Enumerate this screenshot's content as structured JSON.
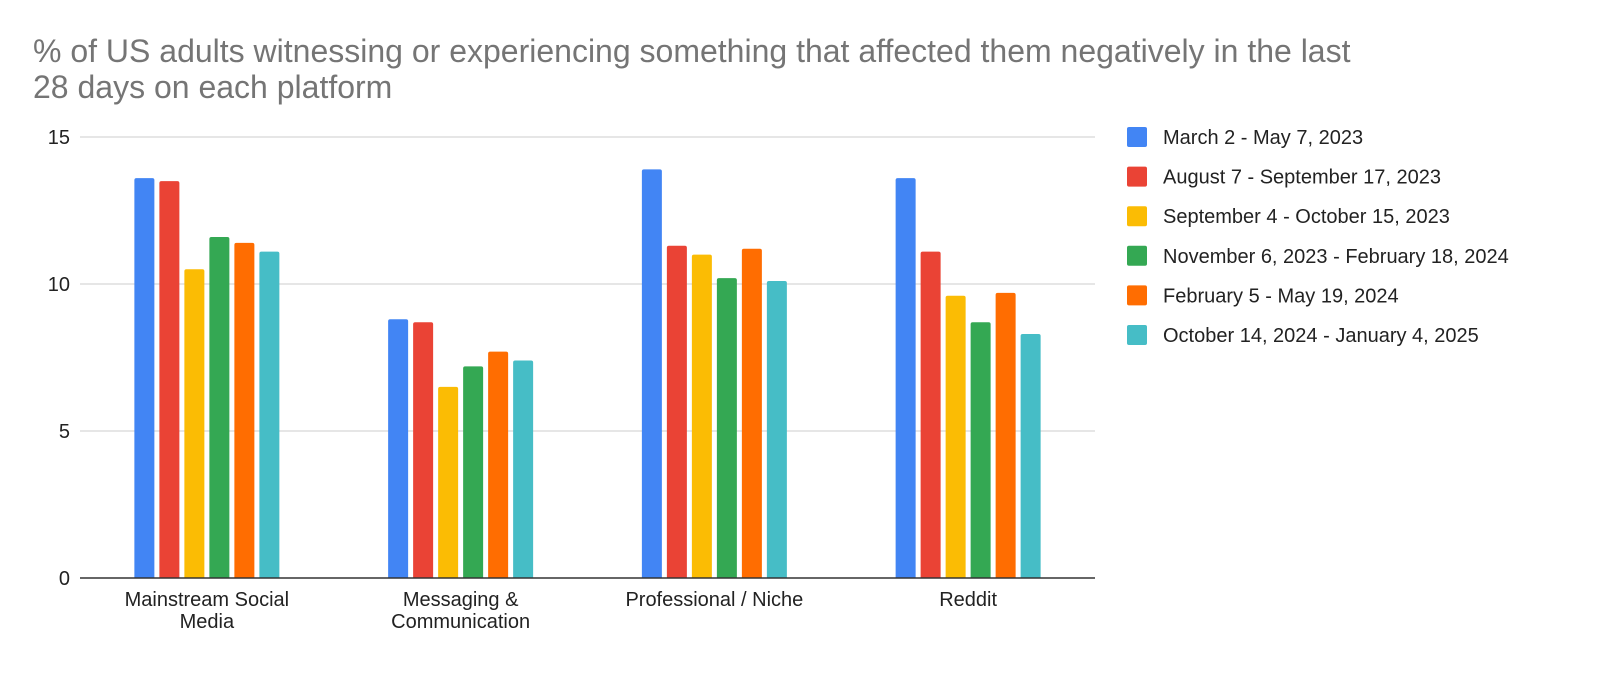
{
  "chart_data": {
    "type": "bar",
    "title_lines": [
      "% of US adults witnessing or experiencing something that affected them negatively in the last",
      "28 days on each platform"
    ],
    "xlabel": "",
    "ylabel": "",
    "ylim": [
      0,
      15
    ],
    "yticks": [
      0,
      5,
      10,
      15
    ],
    "grid": true,
    "legend_position": "right",
    "categories": [
      [
        "Mainstream Social",
        "Media"
      ],
      [
        "Messaging &",
        "Communication"
      ],
      [
        "Professional / Niche"
      ],
      [
        "Reddit"
      ]
    ],
    "series": [
      {
        "name": "March 2 - May 7, 2023",
        "color": "#4285F4",
        "values": [
          13.6,
          8.8,
          13.9,
          13.6
        ]
      },
      {
        "name": "August 7 - September 17, 2023",
        "color": "#EA4335",
        "values": [
          13.5,
          8.7,
          11.3,
          11.1
        ]
      },
      {
        "name": "September 4 - October 15, 2023",
        "color": "#FBBC04",
        "values": [
          10.5,
          6.5,
          11.0,
          9.6
        ]
      },
      {
        "name": "November 6, 2023 - February 18, 2024",
        "color": "#34A853",
        "values": [
          11.6,
          7.2,
          10.2,
          8.7
        ]
      },
      {
        "name": "February 5 - May 19, 2024",
        "color": "#FF6D01",
        "values": [
          11.4,
          7.7,
          11.2,
          9.7
        ]
      },
      {
        "name": "October 14, 2024 - January 4, 2025",
        "color": "#46BDC6",
        "values": [
          11.1,
          7.4,
          10.1,
          8.3
        ]
      }
    ]
  }
}
